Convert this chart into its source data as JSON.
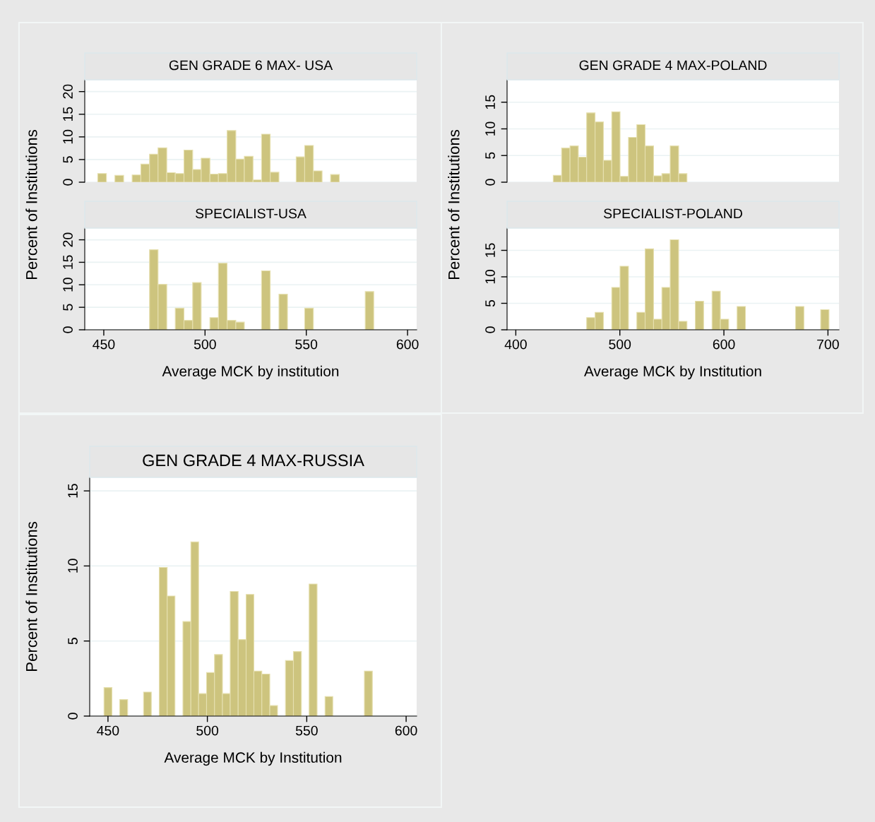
{
  "chart_data": [
    {
      "type": "histogram",
      "title": "GEN GRADE 6 MAX- USA",
      "ylabel": "Percent of Institutions",
      "color": "#cdc47e",
      "grid": "y",
      "tick_labels": "y",
      "xlim": [
        440.6,
        604.5
      ],
      "ylim": [
        0,
        22.6
      ],
      "yticks": [
        0,
        5,
        10,
        15,
        20
      ],
      "bins": [
        447.0,
        451.3,
        455.5,
        459.8,
        464.0,
        468.3,
        472.6,
        476.8,
        481.1,
        485.3,
        489.6,
        493.9,
        498.1,
        502.4,
        506.6,
        510.9,
        515.2,
        519.4,
        523.7,
        527.9,
        532.2,
        536.5,
        540.7,
        545.0,
        549.2,
        553.5,
        557.8,
        562.0,
        566.3,
        570.5,
        574.8,
        579.1,
        583.3
      ],
      "values": [
        1.9,
        0,
        1.5,
        0,
        1.6,
        4.0,
        6.2,
        7.6,
        2.1,
        1.9,
        7.1,
        2.8,
        5.3,
        1.8,
        1.9,
        11.4,
        5.1,
        5.7,
        0.5,
        10.6,
        2.2,
        0,
        0,
        5.6,
        8.1,
        2.5,
        0,
        1.7,
        0,
        0,
        0,
        0
      ]
    },
    {
      "type": "histogram",
      "title": "SPECIALIST-USA",
      "xlabel": "Average MCK by institution",
      "color": "#cdc47e",
      "grid": "y",
      "xlim": [
        440.6,
        604.5
      ],
      "ylim": [
        0,
        22.6
      ],
      "yticks": [
        0,
        5,
        10,
        15,
        20
      ],
      "xticks": [
        450,
        500,
        550,
        600
      ],
      "bins": [
        447.0,
        451.3,
        455.5,
        459.8,
        464.0,
        468.3,
        472.6,
        476.8,
        481.1,
        485.3,
        489.6,
        493.9,
        498.1,
        502.4,
        506.6,
        510.9,
        515.2,
        519.4,
        523.7,
        527.9,
        532.2,
        536.5,
        540.7,
        545.0,
        549.2,
        553.5,
        557.8,
        562.0,
        566.3,
        570.5,
        574.8,
        579.1,
        583.3
      ],
      "values": [
        0,
        0,
        0,
        0,
        0,
        0,
        17.8,
        10.1,
        0,
        4.8,
        2.1,
        10.5,
        0,
        2.7,
        14.8,
        2.1,
        1.7,
        0,
        0,
        13.1,
        0,
        7.9,
        0,
        0,
        4.8,
        0,
        0,
        0,
        0,
        0,
        0,
        8.5
      ]
    },
    {
      "type": "histogram",
      "title": "GEN GRADE 4 MAX-POLAND",
      "ylabel": "Percent of Institutions",
      "color": "#cdc47e",
      "grid": "y",
      "tick_labels": "y",
      "xlim": [
        391.6,
        710.6
      ],
      "ylim": [
        0,
        19.2
      ],
      "yticks": [
        0,
        5,
        10,
        15
      ],
      "bins": [
        436.0,
        444.0,
        452.1,
        460.1,
        468.1,
        476.2,
        484.2,
        492.2,
        500.2,
        508.3,
        516.3,
        524.3,
        532.4,
        540.4,
        548.4,
        556.5,
        564.5,
        572.5,
        580.5,
        588.6,
        596.6,
        604.6,
        612.7,
        620.7,
        628.7,
        636.8,
        644.8,
        652.8,
        660.8,
        668.9,
        676.9,
        684.9,
        693.0,
        701.0
      ],
      "values": [
        1.3,
        6.4,
        6.8,
        4.7,
        13.0,
        11.3,
        4.1,
        13.2,
        1.1,
        8.4,
        10.8,
        6.8,
        1.2,
        1.6,
        6.8,
        1.6,
        0,
        0,
        0,
        0,
        0,
        0,
        0,
        0,
        0,
        0,
        0,
        0,
        0,
        0,
        0,
        0,
        0
      ]
    },
    {
      "type": "histogram",
      "title": "SPECIALIST-POLAND",
      "xlabel": "Average MCK by Institution",
      "color": "#cdc47e",
      "grid": "y",
      "xlim": [
        391.6,
        710.6
      ],
      "ylim": [
        0,
        19.2
      ],
      "yticks": [
        0,
        5,
        10,
        15
      ],
      "xticks": [
        400,
        500,
        600,
        700
      ],
      "bins": [
        436.0,
        444.0,
        452.1,
        460.1,
        468.1,
        476.2,
        484.2,
        492.2,
        500.2,
        508.3,
        516.3,
        524.3,
        532.4,
        540.4,
        548.4,
        556.5,
        564.5,
        572.5,
        580.5,
        588.6,
        596.6,
        604.6,
        612.7,
        620.7,
        628.7,
        636.8,
        644.8,
        652.8,
        660.8,
        668.9,
        676.9,
        684.9,
        693.0,
        701.0
      ],
      "values": [
        0,
        0,
        0,
        0,
        2.3,
        3.3,
        0,
        8.0,
        12.0,
        0,
        3.3,
        15.3,
        2.0,
        8.0,
        17.0,
        1.6,
        0,
        5.4,
        0,
        7.3,
        2.0,
        0,
        4.4,
        0,
        0,
        0,
        0,
        0,
        0,
        4.4,
        0,
        0,
        3.8
      ]
    },
    {
      "type": "histogram",
      "title": "GEN GRADE 4 MAX-RUSSIA",
      "xlabel": "Average MCK by Institution",
      "ylabel": "Percent of Institutions",
      "color": "#cdc47e",
      "grid": "y",
      "xlim": [
        440.8,
        605.3
      ],
      "ylim": [
        0,
        15.9
      ],
      "yticks": [
        0,
        5,
        10,
        15
      ],
      "xticks": [
        450,
        500,
        550,
        600
      ],
      "bins": [
        448.0,
        452.0,
        455.9,
        459.9,
        463.9,
        467.9,
        471.8,
        475.8,
        479.8,
        483.7,
        487.7,
        491.7,
        495.6,
        499.6,
        503.6,
        507.6,
        511.5,
        515.5,
        519.5,
        523.4,
        527.4,
        531.4,
        535.3,
        539.3,
        543.3,
        547.3,
        551.2,
        555.2,
        559.2,
        563.1,
        567.1,
        571.1,
        575.0,
        579.0,
        583.0
      ],
      "values": [
        1.9,
        0,
        1.1,
        0,
        0,
        1.6,
        0,
        9.9,
        8.0,
        0,
        6.3,
        11.6,
        1.5,
        2.9,
        4.1,
        1.5,
        8.3,
        5.1,
        8.1,
        3.0,
        2.8,
        0.7,
        0,
        3.7,
        4.3,
        0,
        8.8,
        0,
        1.3,
        0,
        0,
        0,
        0,
        3.0
      ]
    }
  ]
}
